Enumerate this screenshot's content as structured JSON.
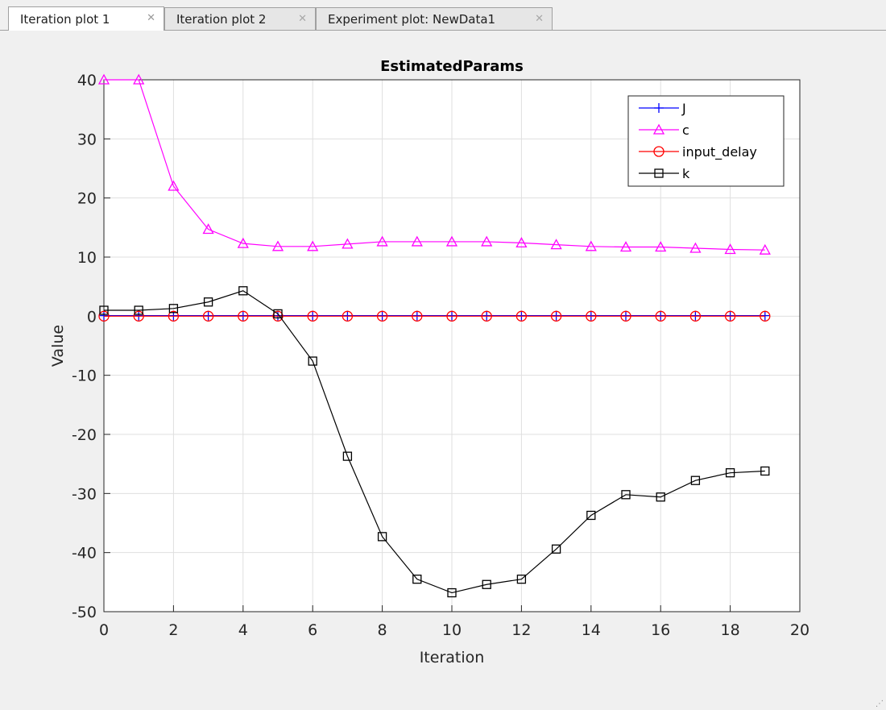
{
  "tabs": [
    {
      "label": "Iteration plot 1",
      "active": true,
      "close_icon": "close-icon"
    },
    {
      "label": "Iteration plot 2",
      "active": false,
      "close_icon": "close-icon"
    },
    {
      "label": "Experiment plot: NewData1",
      "active": false,
      "close_icon": "close-icon"
    }
  ],
  "chart_data": {
    "type": "line",
    "title": "EstimatedParams",
    "xlabel": "Iteration",
    "ylabel": "Value",
    "xlim": [
      0,
      20
    ],
    "ylim": [
      -50,
      40
    ],
    "xticks": [
      0,
      2,
      4,
      6,
      8,
      10,
      12,
      14,
      16,
      18,
      20
    ],
    "yticks": [
      -50,
      -40,
      -30,
      -20,
      -10,
      0,
      10,
      20,
      30,
      40
    ],
    "grid": true,
    "legend_position": "top-right",
    "x": [
      0,
      1,
      2,
      3,
      4,
      5,
      6,
      7,
      8,
      9,
      10,
      11,
      12,
      13,
      14,
      15,
      16,
      17,
      18,
      19
    ],
    "series": [
      {
        "name": "J",
        "color": "#0000ff",
        "marker": "plus",
        "values": [
          0.1,
          0.1,
          0.1,
          0.1,
          0.1,
          0.1,
          0.1,
          0.1,
          0.1,
          0.1,
          0.1,
          0.1,
          0.1,
          0.1,
          0.1,
          0.1,
          0.1,
          0.1,
          0.1,
          0.1
        ]
      },
      {
        "name": "c",
        "color": "#ff00ff",
        "marker": "triangle",
        "values": [
          40,
          40,
          22,
          14.7,
          12.3,
          11.8,
          11.8,
          12.2,
          12.6,
          12.6,
          12.6,
          12.6,
          12.4,
          12.1,
          11.8,
          11.7,
          11.7,
          11.5,
          11.3,
          11.2
        ]
      },
      {
        "name": "input_delay",
        "color": "#ff0000",
        "marker": "circle",
        "values": [
          0,
          0,
          0,
          0,
          0,
          0,
          0,
          0,
          0,
          0,
          0,
          0,
          0,
          0,
          0,
          0,
          0,
          0,
          0,
          0
        ]
      },
      {
        "name": "k",
        "color": "#000000",
        "marker": "square",
        "values": [
          1,
          1,
          1.3,
          2.4,
          4.3,
          0.4,
          -7.6,
          -23.7,
          -37.3,
          -44.5,
          -46.8,
          -45.4,
          -44.5,
          -39.4,
          -33.7,
          -30.2,
          -30.6,
          -27.8,
          -26.5,
          -26.2
        ]
      }
    ]
  }
}
